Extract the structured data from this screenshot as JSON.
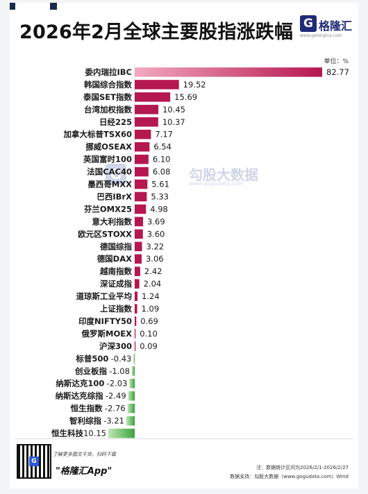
{
  "title": "2026年2月全球主要股指涨跌幅",
  "logo": {
    "glyph": "G",
    "name": "格隆汇",
    "url": "www.gelonghui.com"
  },
  "unit": "单位：%",
  "watermark": {
    "glyph": "G",
    "name": "勾股大数据",
    "url": "www.gogudata.com"
  },
  "footer": {
    "qr_glyph": "G",
    "promo": "了解更多图文干货，扫码下载",
    "app": "\"格隆汇App\"",
    "note": "注：数据统计区间为2026/2/1-2026/2/27",
    "source": "数据支持：勾股大数据（www.gogudata.com）Wind"
  },
  "colors": {
    "positive": "#b5174f",
    "positive_light": "#f3a9c0",
    "negative": "#3ca33c",
    "negative_light": "#bfe6b5"
  },
  "chart_data": {
    "type": "bar",
    "orientation": "horizontal",
    "title": "2026年2月全球主要股指涨跌幅",
    "unit": "%",
    "categories": [
      "委内瑞拉IBC",
      "韩国综合指数",
      "泰国SET指数",
      "台湾加权指数",
      "日经225",
      "加拿大标普TSX60",
      "挪威OSEAX",
      "英国富时100",
      "法国CAC40",
      "墨西哥MXX",
      "巴西IBrX",
      "芬兰OMX25",
      "意大利指数",
      "欧元区STOXX",
      "德国综指",
      "德国DAX",
      "越南指数",
      "深证成指",
      "道琼斯工业平均",
      "上证指数",
      "印度NIFTY50",
      "俄罗斯MOEX",
      "沪深300",
      "标普500",
      "创业板指",
      "纳斯达克100",
      "纳斯达克综指",
      "恒生指数",
      "智利综指",
      "恒生科技"
    ],
    "values": [
      82.77,
      19.52,
      15.69,
      10.45,
      10.37,
      7.17,
      6.54,
      6.1,
      6.08,
      5.61,
      5.33,
      4.98,
      3.69,
      3.6,
      3.22,
      3.06,
      2.42,
      2.04,
      1.24,
      1.09,
      0.69,
      0.1,
      0.09,
      -0.43,
      -1.08,
      -2.03,
      -2.49,
      -2.76,
      -3.21,
      -10.15
    ],
    "labels": [
      "82.77",
      "19.52",
      "15.69",
      "10.45",
      "10.37",
      "7.17",
      "6.54",
      "6.10",
      "6.08",
      "5.61",
      "5.33",
      "4.98",
      "3.69",
      "3.60",
      "3.22",
      "3.06",
      "2.42",
      "2.04",
      "1.24",
      "1.09",
      "0.69",
      "0.10",
      "0.09",
      "-0.43",
      "-1.08",
      "-2.03",
      "-2.49",
      "-2.76",
      "-3.21",
      "-10.15"
    ]
  }
}
